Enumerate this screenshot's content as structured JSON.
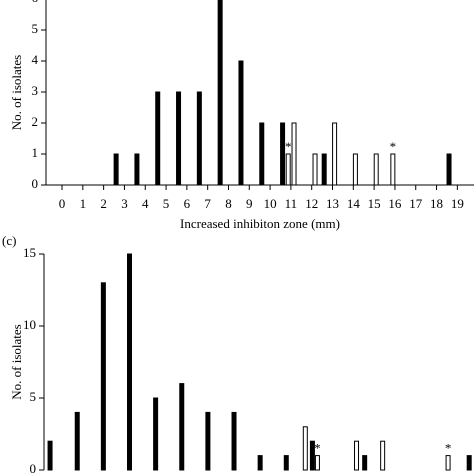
{
  "chart_data": [
    {
      "type": "bar",
      "y_label": "No. of isolates",
      "x_label": "Increased inhibiton zone (mm)",
      "xlim": [
        -0.77,
        19.8
      ],
      "xticks": [
        0,
        1,
        2,
        3,
        4,
        5,
        6,
        7,
        8,
        9,
        10,
        11,
        12,
        13,
        14,
        15,
        16,
        17,
        18,
        19
      ],
      "ylim": [
        0,
        6
      ],
      "yticks": [
        0,
        1,
        2,
        3,
        4,
        5,
        6
      ],
      "series": [
        {
          "color": "#000000",
          "x": [
            2.6,
            3.6,
            4.6,
            5.6,
            6.6,
            7.6,
            8.6,
            9.6,
            10.6,
            12.6,
            18.6
          ],
          "values": [
            1,
            1,
            3,
            3,
            3,
            6,
            4,
            2,
            2,
            1,
            1
          ]
        },
        {
          "color": "#ffffff",
          "x": [
            10.87,
            11.15,
            12.16,
            13.1,
            14.1,
            15.1,
            15.9
          ],
          "values": [
            1,
            2,
            1,
            2,
            1,
            1,
            1
          ]
        }
      ],
      "annotations": [
        {
          "text": "*",
          "x": 10.87,
          "y": 1
        },
        {
          "text": "*",
          "x": 15.9,
          "y": 1
        }
      ]
    },
    {
      "type": "bar",
      "label": "(c)",
      "y_label": "No. of isolates",
      "xlim": [
        -0.77,
        19.8
      ],
      "ylim": [
        0,
        15
      ],
      "yticks": [
        0,
        5,
        10,
        15
      ],
      "series": [
        {
          "color": "#000000",
          "x": [
            -0.48,
            0.82,
            2.07,
            3.32,
            4.57,
            5.82,
            7.07,
            8.32,
            9.57,
            10.82,
            12.07,
            14.57,
            19.57
          ],
          "values": [
            2,
            4,
            13,
            15,
            5,
            6,
            4,
            4,
            1,
            1,
            2,
            1,
            1
          ]
        },
        {
          "color": "#ffffff",
          "x": [
            11.73,
            12.31,
            14.18,
            15.43,
            18.56
          ],
          "values": [
            3,
            1,
            2,
            2,
            1
          ]
        }
      ],
      "annotations": [
        {
          "text": "*",
          "x": 12.31,
          "y": 1
        },
        {
          "text": "*",
          "x": 18.56,
          "y": 1
        }
      ]
    }
  ]
}
